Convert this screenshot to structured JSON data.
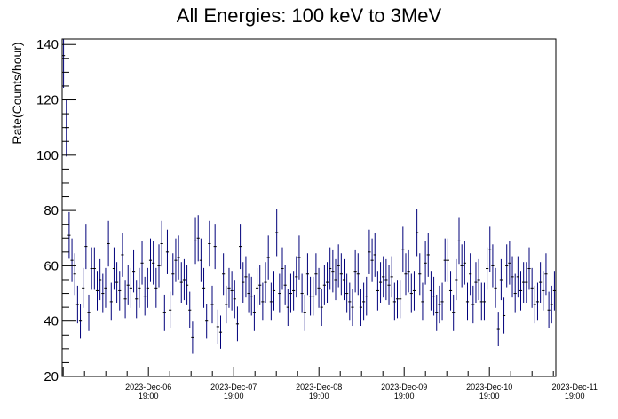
{
  "chart_data": {
    "type": "scatter",
    "title": "All Energies:  100 keV to 3MeV",
    "xlabel": "",
    "ylabel": "Rate(Counts/hour)",
    "ylim": [
      20,
      142
    ],
    "yticks": [
      20,
      40,
      60,
      80,
      100,
      120,
      140
    ],
    "xticks": [
      {
        "date": "2023-Dec-06",
        "time": "19:00"
      },
      {
        "date": "2023-Dec-07",
        "time": "19:00"
      },
      {
        "date": "2023-Dec-08",
        "time": "19:00"
      },
      {
        "date": "2023-Dec-09",
        "time": "19:00"
      },
      {
        "date": "2023-Dec-10",
        "time": "19:00"
      },
      {
        "date": "2023-Dec-11",
        "time": "19:00"
      }
    ],
    "xrange_hours_from_first_tick": [
      -24.3,
      114.7
    ],
    "grid": false,
    "legend": "none",
    "colors": {
      "points": "#00007a",
      "axes": "#000000"
    },
    "series": [
      {
        "name": "",
        "values": [
          136,
          110,
          71,
          62,
          57,
          46,
          40,
          52,
          67,
          43,
          59,
          59,
          51,
          55,
          50,
          52,
          68,
          47,
          59,
          54,
          51,
          64,
          48,
          53,
          52,
          58,
          48,
          52,
          61,
          49,
          52,
          62,
          61,
          52,
          60,
          68,
          43,
          65,
          44,
          57,
          62,
          63,
          54,
          55,
          53,
          44,
          34,
          69,
          70,
          62,
          52,
          40,
          68,
          46,
          67,
          38,
          36,
          57,
          46,
          52,
          51,
          48,
          39,
          67,
          54,
          56,
          50,
          49,
          43,
          52,
          53,
          47,
          54,
          63,
          47,
          51,
          72,
          50,
          59,
          53,
          45,
          50,
          51,
          56,
          63,
          50,
          43,
          57,
          49,
          49,
          57,
          52,
          45,
          53,
          54,
          59,
          58,
          55,
          60,
          57,
          55,
          50,
          47,
          45,
          58,
          57,
          45,
          47,
          49,
          65,
          62,
          64,
          51,
          54,
          56,
          55,
          53,
          56,
          47,
          48,
          48,
          66,
          57,
          58,
          50,
          51,
          72,
          57,
          47,
          61,
          64,
          51,
          49,
          43,
          46,
          47,
          62,
          62,
          51,
          43,
          55,
          69,
          60,
          61,
          47,
          57,
          46,
          54,
          55,
          47,
          47,
          59,
          66,
          60,
          52,
          37,
          55,
          42,
          60,
          61,
          56,
          50,
          56,
          51,
          54,
          54,
          59,
          52,
          46,
          47,
          54,
          51,
          57,
          44,
          46,
          51
        ]
      }
    ]
  }
}
